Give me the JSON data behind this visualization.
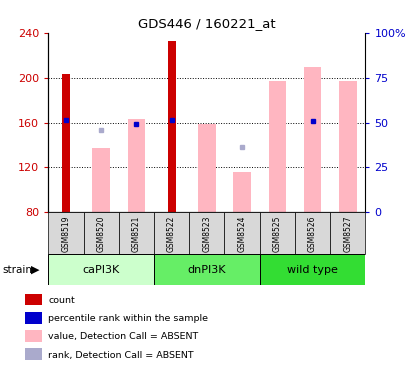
{
  "title": "GDS446 / 160221_at",
  "samples": [
    "GSM8519",
    "GSM8520",
    "GSM8521",
    "GSM8522",
    "GSM8523",
    "GSM8524",
    "GSM8525",
    "GSM8526",
    "GSM8527"
  ],
  "value_bars": [
    null,
    137,
    163,
    null,
    159,
    116,
    197,
    210,
    197
  ],
  "count_bars": [
    203,
    null,
    null,
    233,
    null,
    null,
    null,
    null,
    null
  ],
  "rank_present_values": [
    162,
    null,
    159,
    162,
    null,
    null,
    null,
    161,
    null
  ],
  "rank_absent_values": [
    null,
    153,
    null,
    null,
    null,
    138,
    null,
    null,
    null
  ],
  "ylim": [
    80,
    240
  ],
  "yticks_left": [
    80,
    120,
    160,
    200,
    240
  ],
  "yticks_right_vals": [
    0,
    25,
    50,
    75,
    100
  ],
  "count_color": "#CC0000",
  "value_absent_color": "#FFB6C1",
  "rank_present_color": "#0000CC",
  "rank_absent_color": "#AAAACC",
  "group_labels": [
    "caPI3K",
    "dnPI3K",
    "wild type"
  ],
  "group_starts": [
    0,
    3,
    6
  ],
  "group_ends": [
    3,
    6,
    9
  ],
  "group_colors": [
    "#CCFFCC",
    "#66EE66",
    "#33DD33"
  ],
  "legend_labels": [
    "count",
    "percentile rank within the sample",
    "value, Detection Call = ABSENT",
    "rank, Detection Call = ABSENT"
  ],
  "legend_colors": [
    "#CC0000",
    "#0000CC",
    "#FFB6C1",
    "#AAAACC"
  ]
}
